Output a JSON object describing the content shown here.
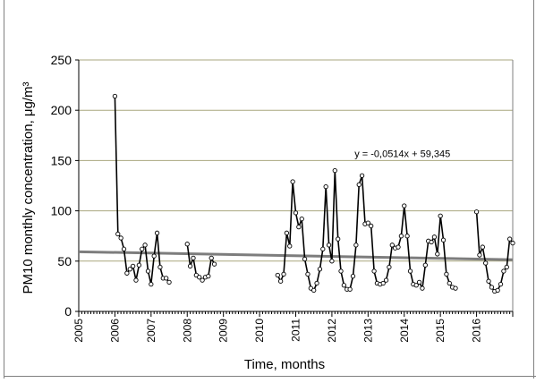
{
  "chart_data": {
    "type": "line",
    "ylabel": "PM10  monthly concentration, μg/m³",
    "xlabel": "Time, months",
    "ylim": [
      0,
      250
    ],
    "yticks": [
      0,
      50,
      100,
      150,
      200,
      250
    ],
    "xlim": [
      2005,
      2017
    ],
    "xticks": [
      2005,
      2006,
      2007,
      2008,
      2009,
      2010,
      2011,
      2012,
      2013,
      2014,
      2015,
      2016
    ],
    "grid": "horizontal",
    "series": [
      {
        "style": "line-with-open-markers",
        "color": "#000000",
        "segments": [
          [
            [
              2006.0,
              214
            ],
            [
              2006.083,
              77
            ],
            [
              2006.167,
              73
            ],
            [
              2006.25,
              62
            ],
            [
              2006.333,
              38
            ],
            [
              2006.417,
              42
            ],
            [
              2006.5,
              45
            ],
            [
              2006.583,
              31
            ],
            [
              2006.667,
              46
            ],
            [
              2006.75,
              62
            ],
            [
              2006.833,
              66
            ],
            [
              2006.917,
              40
            ],
            [
              2007.0,
              27
            ],
            [
              2007.083,
              55
            ],
            [
              2007.167,
              78
            ],
            [
              2007.25,
              44
            ],
            [
              2007.333,
              33
            ],
            [
              2007.417,
              33
            ],
            [
              2007.5,
              29
            ]
          ],
          [
            [
              2008.0,
              67
            ],
            [
              2008.083,
              45
            ],
            [
              2008.167,
              53
            ],
            [
              2008.25,
              36
            ],
            [
              2008.333,
              34
            ],
            [
              2008.417,
              31
            ],
            [
              2008.5,
              34
            ],
            [
              2008.583,
              35
            ],
            [
              2008.667,
              53
            ],
            [
              2008.75,
              47
            ]
          ],
          [
            [
              2010.5,
              36
            ],
            [
              2010.583,
              30
            ],
            [
              2010.667,
              37
            ],
            [
              2010.75,
              78
            ],
            [
              2010.833,
              65
            ],
            [
              2010.917,
              129
            ],
            [
              2011.0,
              98
            ],
            [
              2011.083,
              84
            ],
            [
              2011.167,
              92
            ],
            [
              2011.25,
              52
            ],
            [
              2011.333,
              37
            ],
            [
              2011.417,
              23
            ],
            [
              2011.5,
              21
            ],
            [
              2011.583,
              28
            ],
            [
              2011.667,
              42
            ],
            [
              2011.75,
              62
            ],
            [
              2011.833,
              124
            ],
            [
              2011.917,
              66
            ],
            [
              2012.0,
              50
            ],
            [
              2012.083,
              140
            ],
            [
              2012.167,
              72
            ],
            [
              2012.25,
              40
            ],
            [
              2012.333,
              26
            ],
            [
              2012.417,
              22
            ],
            [
              2012.5,
              22
            ],
            [
              2012.583,
              35
            ],
            [
              2012.667,
              66
            ],
            [
              2012.75,
              126
            ],
            [
              2012.833,
              135
            ],
            [
              2012.917,
              87
            ],
            [
              2013.0,
              88
            ],
            [
              2013.083,
              85
            ],
            [
              2013.167,
              40
            ],
            [
              2013.25,
              28
            ],
            [
              2013.333,
              27
            ],
            [
              2013.417,
              28
            ],
            [
              2013.5,
              31
            ],
            [
              2013.583,
              44
            ],
            [
              2013.667,
              66
            ],
            [
              2013.75,
              63
            ],
            [
              2013.833,
              64
            ],
            [
              2013.917,
              75
            ],
            [
              2014.0,
              105
            ],
            [
              2014.083,
              75
            ],
            [
              2014.167,
              40
            ],
            [
              2014.25,
              27
            ],
            [
              2014.333,
              26
            ],
            [
              2014.417,
              29
            ],
            [
              2014.5,
              23
            ],
            [
              2014.583,
              46
            ],
            [
              2014.667,
              70
            ],
            [
              2014.75,
              69
            ],
            [
              2014.833,
              74
            ],
            [
              2014.917,
              57
            ],
            [
              2015.0,
              95
            ],
            [
              2015.083,
              71
            ],
            [
              2015.167,
              37
            ],
            [
              2015.25,
              28
            ],
            [
              2015.333,
              24
            ],
            [
              2015.417,
              23
            ]
          ],
          [
            [
              2016.0,
              99
            ],
            [
              2016.083,
              56
            ],
            [
              2016.167,
              64
            ],
            [
              2016.25,
              48
            ],
            [
              2016.333,
              30
            ],
            [
              2016.417,
              24
            ],
            [
              2016.5,
              20
            ],
            [
              2016.583,
              21
            ],
            [
              2016.667,
              27
            ],
            [
              2016.75,
              40
            ],
            [
              2016.833,
              44
            ],
            [
              2016.917,
              72
            ],
            [
              2017.0,
              68
            ]
          ]
        ]
      },
      {
        "style": "trend",
        "color": "#7d7d7d",
        "start": [
          2005,
          59.3
        ],
        "end": [
          2017,
          51.4
        ]
      }
    ],
    "annotations": [
      {
        "text": "y = -0,0514x + 59,345",
        "at": [
          2013.95,
          150
        ]
      }
    ],
    "colors": {
      "gridline": "#a9a77f",
      "border": "#808080"
    }
  }
}
